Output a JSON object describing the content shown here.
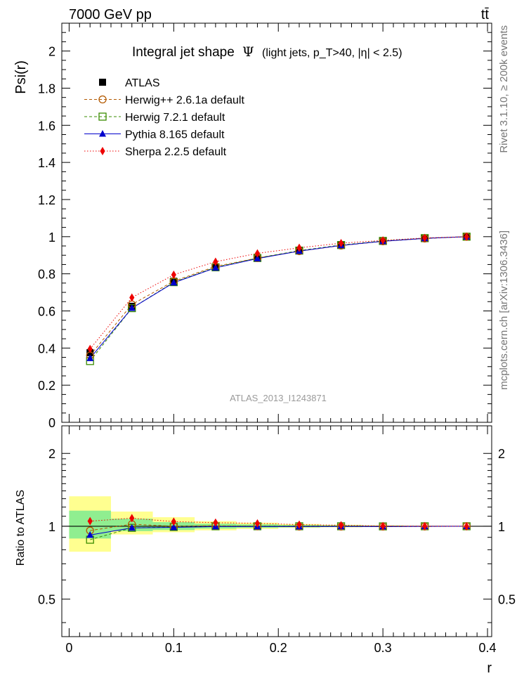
{
  "header": {
    "energy_label": "7000 GeV pp",
    "process_label": "tt̄"
  },
  "side_labels": {
    "rivet": "Rivet 3.1.10, ≥ 200k events",
    "mcplots": "mcplots.cern.ch [arXiv:1306.3436]"
  },
  "watermark": "ATLAS_2013_I1243871",
  "main_plot": {
    "title_prefix": "Integral jet shape",
    "title_symbol": "Ψ",
    "title_detail": "(light jets, p_T>40, |η| < 2.5)",
    "ylabel": "Psi(r)",
    "yticks": [
      "0",
      "0.2",
      "0.4",
      "0.6",
      "0.8",
      "1",
      "1.2",
      "1.4",
      "1.6",
      "1.8",
      "2"
    ]
  },
  "ratio_plot": {
    "ylabel": "Ratio to ATLAS",
    "yticks": [
      "0.5",
      "1",
      "2"
    ],
    "xlabel": "r",
    "xticks": [
      "0",
      "0.1",
      "0.2",
      "0.3",
      "0.4"
    ]
  },
  "legend": [
    {
      "name": "ATLAS",
      "color": "#000000",
      "marker": "filled-square"
    },
    {
      "name": "Herwig++ 2.6.1a default",
      "color": "#b35900",
      "marker": "open-circle"
    },
    {
      "name": "Herwig 7.2.1 default",
      "color": "#3a8c00",
      "marker": "open-square"
    },
    {
      "name": "Pythia 8.165 default",
      "color": "#0000cc",
      "marker": "filled-triangle"
    },
    {
      "name": "Sherpa 2.2.5 default",
      "color": "#ee0000",
      "marker": "filled-diamond"
    }
  ],
  "chart_data": [
    {
      "type": "line",
      "title": "Integral jet shape Ψ (light jets, p_T>40, |η| < 2.5)",
      "xlabel": "r",
      "ylabel": "Psi(r)",
      "xlim": [
        -0.007,
        0.404
      ],
      "ylim": [
        0,
        2.15
      ],
      "x": [
        0.02,
        0.06,
        0.1,
        0.14,
        0.18,
        0.22,
        0.26,
        0.3,
        0.34,
        0.38
      ],
      "series": [
        {
          "name": "ATLAS",
          "values": [
            0.375,
            0.625,
            0.76,
            0.835,
            0.885,
            0.925,
            0.955,
            0.978,
            0.992,
            1.0
          ]
        },
        {
          "name": "Herwig++ 2.6.1a default",
          "values": [
            0.36,
            0.635,
            0.76,
            0.84,
            0.885,
            0.922,
            0.952,
            0.975,
            0.99,
            1.0
          ]
        },
        {
          "name": "Herwig 7.2.1 default",
          "values": [
            0.33,
            0.615,
            0.755,
            0.835,
            0.885,
            0.925,
            0.955,
            0.977,
            0.992,
            1.0
          ]
        },
        {
          "name": "Pythia 8.165 default",
          "values": [
            0.345,
            0.615,
            0.752,
            0.832,
            0.882,
            0.922,
            0.953,
            0.975,
            0.991,
            1.0
          ]
        },
        {
          "name": "Sherpa 2.2.5 default",
          "values": [
            0.395,
            0.672,
            0.795,
            0.865,
            0.91,
            0.94,
            0.965,
            0.98,
            0.993,
            1.0
          ]
        }
      ]
    },
    {
      "type": "line",
      "title": "Ratio to ATLAS",
      "xlabel": "r",
      "ylabel": "Ratio to ATLAS",
      "scale": "log",
      "xlim": [
        -0.007,
        0.404
      ],
      "ylim": [
        0.35,
        2.6
      ],
      "x": [
        0.02,
        0.06,
        0.1,
        0.14,
        0.18,
        0.22,
        0.26,
        0.3,
        0.34,
        0.38
      ],
      "bin_edges": [
        0.0,
        0.04,
        0.08,
        0.12,
        0.16,
        0.2,
        0.24,
        0.28,
        0.32,
        0.36,
        0.4
      ],
      "uncertainty_bands": {
        "stat_green_low": [
          0.89,
          0.955,
          0.965,
          0.978,
          0.985,
          0.99,
          0.993,
          0.995,
          0.998,
          1.0
        ],
        "stat_green_high": [
          1.16,
          1.075,
          1.04,
          1.025,
          1.018,
          1.012,
          1.008,
          1.005,
          1.002,
          1.0
        ],
        "total_yellow_low": [
          0.785,
          0.925,
          0.945,
          0.962,
          0.975,
          0.985,
          0.99,
          0.994,
          0.997,
          1.0
        ],
        "total_yellow_high": [
          1.33,
          1.15,
          1.09,
          1.05,
          1.035,
          1.022,
          1.014,
          1.008,
          1.004,
          1.0
        ]
      },
      "series": [
        {
          "name": "Herwig++ 2.6.1a default",
          "values": [
            0.96,
            1.02,
            1.0,
            1.005,
            1.0,
            0.997,
            0.997,
            0.997,
            0.998,
            1.0
          ]
        },
        {
          "name": "Herwig 7.2.1 default",
          "values": [
            0.88,
            0.985,
            0.993,
            1.0,
            1.0,
            1.0,
            1.0,
            0.999,
            1.0,
            1.0
          ]
        },
        {
          "name": "Pythia 8.165 default",
          "values": [
            0.92,
            0.985,
            0.99,
            0.997,
            0.997,
            0.997,
            0.998,
            0.997,
            0.999,
            1.0
          ]
        },
        {
          "name": "Sherpa 2.2.5 default",
          "values": [
            1.05,
            1.08,
            1.045,
            1.035,
            1.028,
            1.016,
            1.01,
            1.002,
            1.001,
            1.0
          ]
        }
      ]
    }
  ]
}
